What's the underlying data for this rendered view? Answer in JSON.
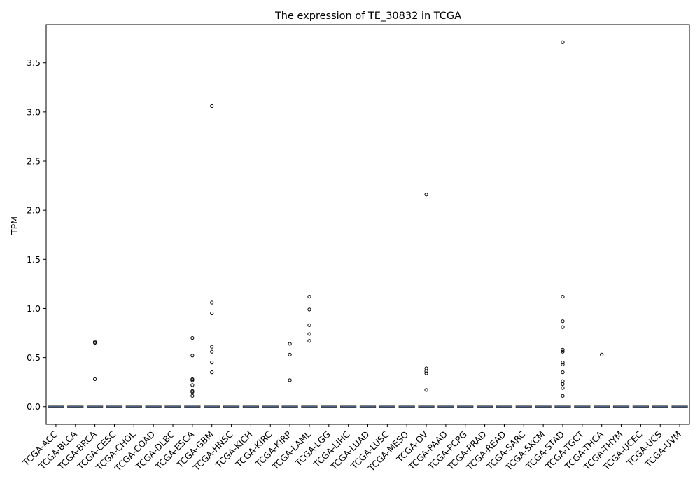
{
  "chart_data": {
    "type": "box",
    "title": "The expression of TE_30832 in TCGA",
    "xlabel": "",
    "ylabel": "TPM",
    "ylim": [
      -0.18,
      3.89
    ],
    "yticks": [
      0.0,
      0.5,
      1.0,
      1.5,
      2.0,
      2.5,
      3.0,
      3.5
    ],
    "grid": false,
    "box_color": "#4c72b0",
    "categories": [
      "TCGA-ACC",
      "TCGA-BLCA",
      "TCGA-BRCA",
      "TCGA-CESC",
      "TCGA-CHOL",
      "TCGA-COAD",
      "TCGA-DLBC",
      "TCGA-ESCA",
      "TCGA-GBM",
      "TCGA-HNSC",
      "TCGA-KICH",
      "TCGA-KIRC",
      "TCGA-KIRP",
      "TCGA-LAML",
      "TCGA-LGG",
      "TCGA-LIHC",
      "TCGA-LUAD",
      "TCGA-LUSC",
      "TCGA-MESO",
      "TCGA-OV",
      "TCGA-PAAD",
      "TCGA-PCPG",
      "TCGA-PRAD",
      "TCGA-READ",
      "TCGA-SARC",
      "TCGA-SKCM",
      "TCGA-STAD",
      "TCGA-TGCT",
      "TCGA-THCA",
      "TCGA-THYM",
      "TCGA-UCEC",
      "TCGA-UCS",
      "TCGA-UVM"
    ],
    "median": [
      0,
      0,
      0,
      0,
      0,
      0,
      0,
      0,
      0,
      0,
      0,
      0,
      0,
      0,
      0,
      0,
      0,
      0,
      0,
      0,
      0,
      0,
      0,
      0,
      0,
      0,
      0,
      0,
      0,
      0,
      0,
      0,
      0
    ],
    "outliers": [
      [],
      [],
      [
        0.66,
        0.65,
        0.28
      ],
      [],
      [],
      [],
      [],
      [
        0.7,
        0.52,
        0.28,
        0.27,
        0.22,
        0.16,
        0.15,
        0.11
      ],
      [
        3.06,
        1.06,
        0.95,
        0.61,
        0.56,
        0.45,
        0.35
      ],
      [],
      [],
      [],
      [
        0.64,
        0.53,
        0.27
      ],
      [
        1.12,
        0.99,
        0.83,
        0.74,
        0.67
      ],
      [],
      [],
      [],
      [],
      [],
      [
        2.16,
        0.39,
        0.36,
        0.34,
        0.17
      ],
      [],
      [],
      [],
      [],
      [],
      [],
      [
        3.71,
        1.12,
        0.87,
        0.81,
        0.58,
        0.56,
        0.45,
        0.43,
        0.35,
        0.26,
        0.23,
        0.19,
        0.11
      ],
      [],
      [
        0.53
      ],
      [],
      [],
      [],
      []
    ]
  }
}
